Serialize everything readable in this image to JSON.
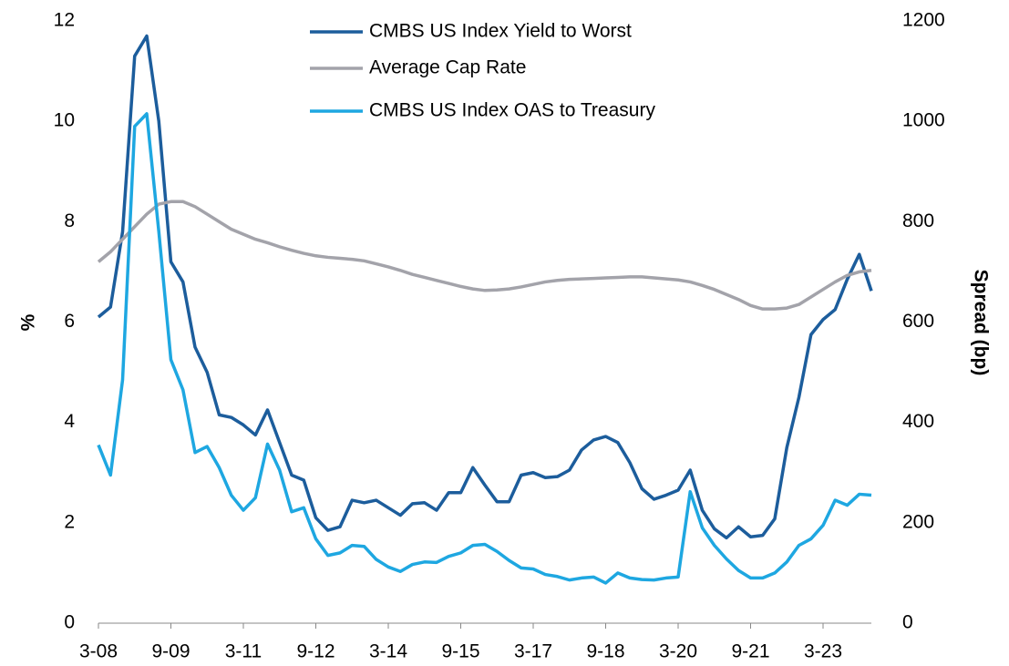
{
  "chart_data": {
    "type": "line",
    "y_label": "%",
    "y2_label": "Spread (bp)",
    "categories": [
      "3-08",
      null,
      null,
      null,
      null,
      null,
      "9-09",
      null,
      null,
      null,
      null,
      null,
      "3-11",
      null,
      null,
      null,
      null,
      null,
      "9-12",
      null,
      null,
      null,
      null,
      null,
      "3-14",
      null,
      null,
      null,
      null,
      null,
      "9-15",
      null,
      null,
      null,
      null,
      null,
      "3-17",
      null,
      null,
      null,
      null,
      null,
      "9-18",
      null,
      null,
      null,
      null,
      null,
      "3-20",
      null,
      null,
      null,
      null,
      null,
      "9-21",
      null,
      null,
      null,
      null,
      null,
      "3-23",
      null,
      null,
      null,
      null
    ],
    "ylim": [
      0,
      12
    ],
    "yticks": [
      0,
      2,
      4,
      6,
      8,
      10,
      12
    ],
    "y2lim": [
      0,
      1200
    ],
    "y2ticks": [
      0,
      200,
      400,
      600,
      800,
      1000,
      1200
    ],
    "legend": "top",
    "series": [
      {
        "name": "CMBS US Index Yield to Worst",
        "color": "#1c5d9c",
        "values": [
          6.1,
          6.3,
          7.8,
          11.3,
          11.7,
          10.0,
          7.2,
          6.8,
          5.5,
          5.0,
          4.15,
          4.1,
          3.95,
          3.75,
          4.25,
          3.6,
          2.95,
          2.85,
          2.1,
          1.85,
          1.92,
          2.45,
          2.4,
          2.45,
          2.3,
          2.15,
          2.38,
          2.4,
          2.25,
          2.6,
          2.6,
          3.1,
          2.75,
          2.42,
          2.42,
          2.95,
          3.0,
          2.9,
          2.92,
          3.05,
          3.45,
          3.65,
          3.72,
          3.6,
          3.2,
          2.68,
          2.47,
          2.55,
          2.65,
          3.05,
          2.25,
          1.88,
          1.7,
          1.92,
          1.72,
          1.75,
          2.08,
          3.5,
          4.5,
          5.75,
          6.05,
          6.25,
          6.85,
          7.35,
          6.62
        ]
      },
      {
        "name": "Average Cap Rate",
        "color": "#a3a3aa",
        "values": [
          7.2,
          7.4,
          7.65,
          7.9,
          8.15,
          8.35,
          8.4,
          8.4,
          8.3,
          8.15,
          8.0,
          7.85,
          7.75,
          7.65,
          7.58,
          7.5,
          7.43,
          7.37,
          7.32,
          7.29,
          7.27,
          7.25,
          7.22,
          7.16,
          7.1,
          7.03,
          6.95,
          6.89,
          6.83,
          6.77,
          6.71,
          6.66,
          6.63,
          6.64,
          6.66,
          6.7,
          6.75,
          6.8,
          6.83,
          6.85,
          6.86,
          6.87,
          6.88,
          6.89,
          6.9,
          6.9,
          6.88,
          6.86,
          6.84,
          6.8,
          6.73,
          6.65,
          6.55,
          6.45,
          6.33,
          6.26,
          6.26,
          6.28,
          6.35,
          6.5,
          6.65,
          6.8,
          6.93,
          7.0,
          7.03
        ]
      },
      {
        "name": "CMBS US Index OAS to Treasury",
        "color": "#1ea7e1",
        "axis": "y2",
        "values": [
          355,
          295,
          485,
          990,
          1015,
          780,
          525,
          465,
          340,
          352,
          310,
          255,
          225,
          250,
          357,
          305,
          222,
          230,
          168,
          135,
          140,
          155,
          153,
          127,
          112,
          103,
          117,
          122,
          121,
          133,
          140,
          155,
          157,
          143,
          125,
          110,
          108,
          97,
          93,
          86,
          90,
          92,
          80,
          100,
          90,
          87,
          86,
          90,
          92,
          262,
          190,
          155,
          128,
          105,
          90,
          90,
          100,
          122,
          155,
          168,
          195,
          245,
          235,
          257,
          255
        ]
      }
    ]
  }
}
